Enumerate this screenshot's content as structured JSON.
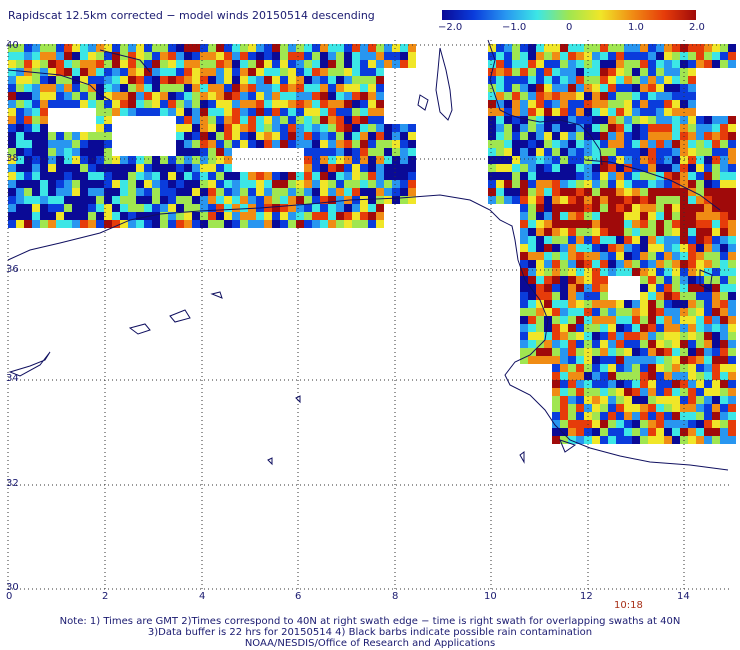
{
  "title": "Rapidscat 12.5km corrected − model winds 20150514 descending",
  "colorbar": {
    "ticks": [
      "−2.0",
      "−1.0",
      "0",
      "1.0",
      "2.0"
    ],
    "colors": [
      "#0a0a96",
      "#0a3cdc",
      "#2896f0",
      "#3ce6e6",
      "#a0e650",
      "#f0e628",
      "#f08c14",
      "#e63c0a",
      "#a00a0a"
    ],
    "range": [
      -2.0,
      2.0
    ]
  },
  "axes": {
    "y_labels": [
      "40",
      "38",
      "36",
      "34",
      "32",
      "30"
    ],
    "x_labels": [
      "0",
      "2",
      "4",
      "6",
      "8",
      "10",
      "12",
      "14"
    ],
    "lat_range": [
      30,
      40
    ],
    "lon_range": [
      0,
      15
    ]
  },
  "time_label": "10:18",
  "notes": {
    "line1": "Note: 1) Times are GMT 2)Times correspond to 40N at right swath edge − time is right swath for overlapping swaths at 40N",
    "line2": "3)Data buffer is 22 hrs for 20150514 4) Black barbs indicate possible rain contamination",
    "line3": "NOAA/NESDIS/Office of Research and Applications"
  }
}
